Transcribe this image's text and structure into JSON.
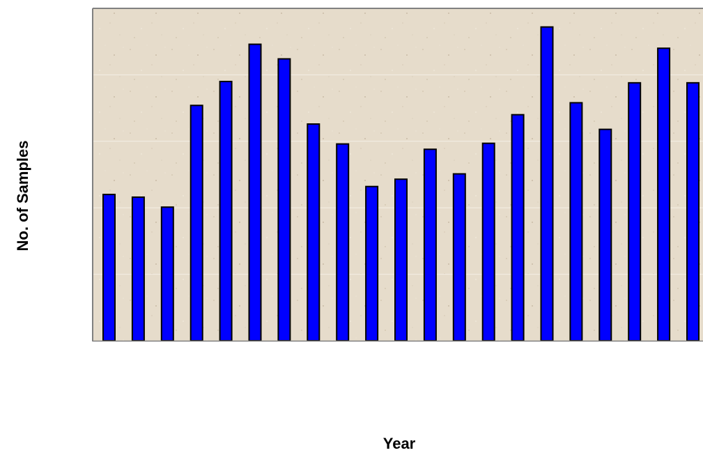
{
  "chart_data": {
    "type": "bar",
    "title": "",
    "xlabel": "Year",
    "ylabel": "No. of Samples",
    "ylim": [
      0,
      5
    ],
    "grid": true,
    "legend": "none",
    "colors": {
      "bar_fill": "#0000ff",
      "bar_stroke": "#000000",
      "plot_background": "#e6dccb",
      "gridline": "#f4efe6",
      "plot_border": "#808080"
    },
    "values": [
      2.2,
      2.16,
      2.01,
      3.54,
      3.9,
      4.46,
      4.24,
      3.26,
      2.96,
      2.32,
      2.43,
      2.88,
      2.51,
      2.97,
      3.4,
      4.72,
      3.58,
      3.18,
      3.88,
      4.4,
      3.88
    ]
  }
}
